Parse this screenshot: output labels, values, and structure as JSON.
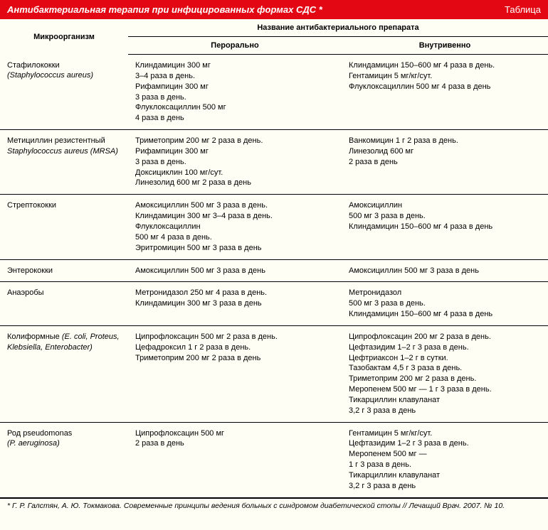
{
  "header": {
    "title": "Антибактериальная терапия при инфицированных формах СДС *",
    "label": "Таблица"
  },
  "columns": {
    "organism": "Микроорганизм",
    "drug_header": "Название антибактериального препарата",
    "oral": "Перорально",
    "iv": "Внутривенно"
  },
  "rows": [
    {
      "organism_main": "Стафилококки",
      "organism_sub": "(Staphylococcus aureus)",
      "oral": "Клиндамицин 300 мг\n3–4 раза в день.\nРифампицин 300 мг\n3 раза в день.\nФлуклоксациллин 500 мг\n4 раза в день",
      "iv": "Клиндамицин 150–600 мг 4 раза в день.\nГентамицин 5 мг/кг/сут.\nФлуклоксациллин 500 мг 4 раза в день"
    },
    {
      "organism_main": "Метициллин резистентный",
      "organism_sub": "Staphylococcus aureus (MRSA)",
      "oral": "Триметоприм 200 мг 2 раза в день.\nРифампицин 300 мг\n3 раза в день.\nДоксициклин 100 мг/сут.\nЛинезолид 600 мг 2 раза в день",
      "iv": "Ванкомицин 1 г 2 раза в день.\nЛинезолид 600 мг\n2 раза в день"
    },
    {
      "organism_main": "Стрептококки",
      "organism_sub": "",
      "oral": "Амоксициллин 500 мг 3 раза в день.\nКлиндамицин 300 мг 3–4 раза в день.\nФлуклоксациллин\n500 мг 4 раза в день.\nЭритромицин 500 мг 3 раза в день",
      "iv": "Амоксициллин\n500 мг 3 раза в день.\nКлиндамицин 150–600 мг 4 раза в день"
    },
    {
      "organism_main": "Энтерококки",
      "organism_sub": "",
      "oral": "Амоксициллин 500 мг 3 раза в день",
      "iv": "Амоксициллин 500 мг 3 раза в день"
    },
    {
      "organism_main": "Анаэробы",
      "organism_sub": "",
      "oral": "Метронидазол 250 мг 4 раза в день.\nКлиндамицин 300 мг 3 раза в день",
      "iv": "Метронидазол\n500 мг 3 раза в день.\nКлиндамицин 150–600 мг 4 раза в день"
    },
    {
      "organism_main": "Колиформные ",
      "organism_sub": "(E. coli, Proteus, Klebsiella, Enterobacter)",
      "inline_sub": true,
      "oral": "Ципрофлоксацин 500 мг 2 раза в день.\nЦефадроксил 1 г 2 раза в день.\nТриметоприм 200 мг 2 раза в день",
      "iv": "Ципрофлоксацин 200 мг 2 раза в день.\nЦефтазидим 1–2 г 3 раза в день.\nЦефтриаксон 1–2 г в сутки.\nТазобактам 4,5 г 3 раза в день.\nТриметоприм 200 мг 2 раза в день.\nМеропенем 500 мг — 1 г 3 раза в день.\nТикарциллин клавуланат\n3,2 г 3 раза в день"
    },
    {
      "organism_main": "Род pseudomonas",
      "organism_sub": "(P. aeruginosa)",
      "oral": "Ципрофлоксацин 500 мг\n2 раза в день",
      "iv": "Гентамицин 5 мг/кг/сут.\nЦефтазидим 1–2 г 3 раза в день.\nМеропенем 500 мг —\n1 г 3 раза в день.\nТикарциллин клавуланат\n3,2 г 3 раза в день"
    }
  ],
  "footnote": "* Г. Р. Галстян, А. Ю. Токмакова. Современные принципы ведения больных с синдромом диабетической стопы // Лечащий Врач. 2007. № 10.",
  "colors": {
    "header_bg": "#e30613",
    "header_text": "#ffffff",
    "page_bg": "#fffef5",
    "border": "#000000"
  }
}
